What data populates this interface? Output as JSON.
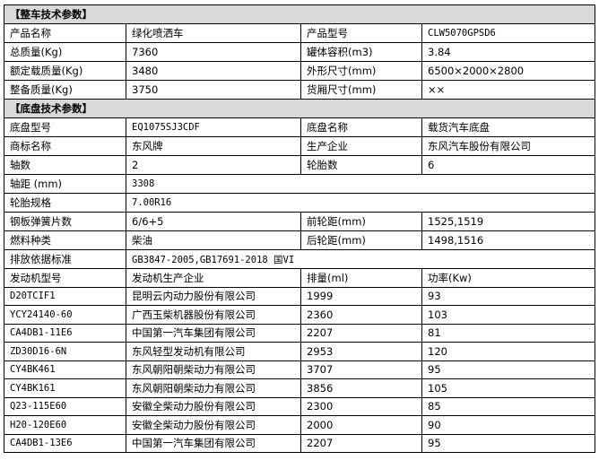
{
  "vehicle": {
    "title": "【整车技术参数】",
    "rows": [
      [
        "产品名称",
        "绿化喷洒车",
        "产品型号",
        "CLW5070GPSD6"
      ],
      [
        "总质量(Kg)",
        "7360",
        "罐体容积(m3)",
        "3.84"
      ],
      [
        "额定载质量(Kg)",
        "3480",
        "外形尺寸(mm)",
        "6500×2000×2800"
      ],
      [
        "整备质量(Kg)",
        "3750",
        "货厢尺寸(mm)",
        "××"
      ]
    ]
  },
  "chassis": {
    "title": "【底盘技术参数】",
    "rows4": [
      [
        "底盘型号",
        "EQ1075SJ3CDF",
        "底盘名称",
        "载货汽车底盘"
      ],
      [
        "商标名称",
        "东风牌",
        "生产企业",
        "东风汽车股份有限公司"
      ],
      [
        "轴数",
        "2",
        "轮胎数",
        "6"
      ]
    ],
    "rows2a": [
      [
        "轴距 (mm)",
        "3308"
      ],
      [
        "轮胎规格",
        "7.00R16"
      ]
    ],
    "rows4b": [
      [
        "钢板弹簧片数",
        "6/6+5",
        "前轮距(mm)",
        "1525,1519"
      ],
      [
        "燃料种类",
        "柴油",
        "后轮距(mm)",
        "1498,1516"
      ]
    ],
    "emission": [
      "排放依据标准",
      "GB3847-2005,GB17691-2018 国VI"
    ]
  },
  "engines": {
    "headers": [
      "发动机型号",
      "发动机生产企业",
      "排量(ml)",
      "功率(Kw)"
    ],
    "rows": [
      [
        "D20TCIF1",
        "昆明云内动力股份有限公司",
        "1999",
        "93"
      ],
      [
        "YCY24140-60",
        "广西玉柴机器股份有限公司",
        "2360",
        "103"
      ],
      [
        "CA4DB1-11E6",
        "中国第一汽车集团有限公司",
        "2207",
        "81"
      ],
      [
        "ZD30D16-6N",
        "东风轻型发动机有限公司",
        "2953",
        "120"
      ],
      [
        "CY4BK461",
        "东风朝阳朝柴动力有限公司",
        "3707",
        "95"
      ],
      [
        "CY4BK161",
        "东风朝阳朝柴动力有限公司",
        "3856",
        "105"
      ],
      [
        "Q23-115E60",
        "安徽全柴动力股份有限公司",
        "2300",
        "85"
      ],
      [
        "H20-120E60",
        "安徽全柴动力股份有限公司",
        "2000",
        "90"
      ],
      [
        "CA4DB1-13E6",
        "中国第一汽车集团有限公司",
        "2207",
        "95"
      ]
    ]
  }
}
